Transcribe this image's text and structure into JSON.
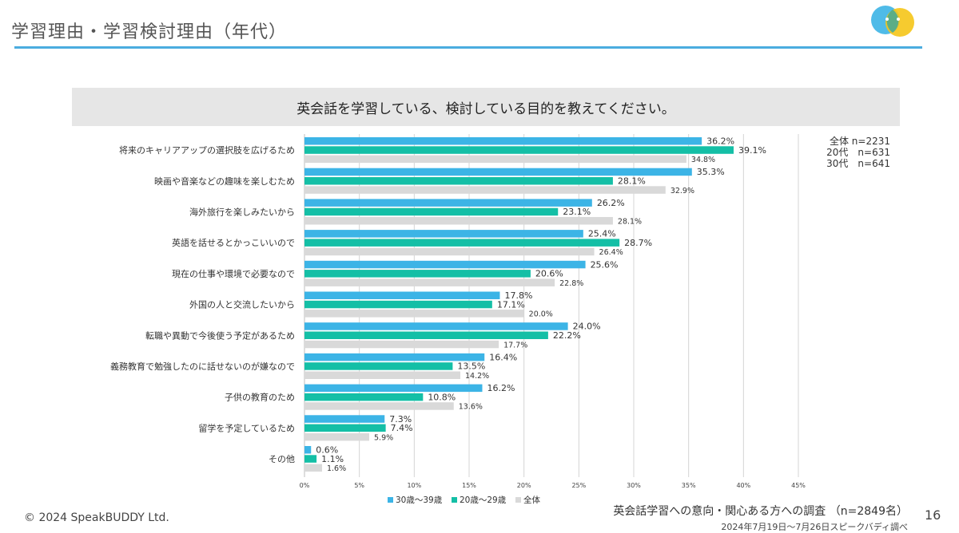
{
  "page": {
    "title": "学習理由・学習検討理由（年代）",
    "question": "英会話を学習している、検討している目的を教えてください。",
    "sample_sizes": [
      "全体 n=2231",
      "20代　n=631",
      "30代　n=641"
    ],
    "copyright": "© 2024 SpeakBUDDY Ltd.",
    "survey_title": "英会話学習への意向・関心ある方への調査 （n=2849名）",
    "survey_date": "2024年7月19日〜7月26日スピークバディ調べ",
    "page_number": "16",
    "logo_icon": "speakbuddy-logo-icon"
  },
  "chart_data": {
    "type": "bar",
    "orientation": "horizontal",
    "categories": [
      "将来のキャリアアップの選択肢を広げるため",
      "映画や音楽などの趣味を楽しむため",
      "海外旅行を楽しみたいから",
      "英語を話せるとかっこいいので",
      "現在の仕事や環境で必要なので",
      "外国の人と交流したいから",
      "転職や異動で今後使う予定があるため",
      "義務教育で勉強したのに話せないのが嫌なので",
      "子供の教育のため",
      "留学を予定しているため",
      "その他"
    ],
    "series": [
      {
        "name": "30歳〜39歳",
        "color": "#3cb4e6",
        "values": [
          36.2,
          35.3,
          26.2,
          25.4,
          25.6,
          17.8,
          24.0,
          16.4,
          16.2,
          7.3,
          0.6
        ]
      },
      {
        "name": "20歳〜29歳",
        "color": "#14bfa6",
        "values": [
          39.1,
          28.1,
          23.1,
          28.7,
          20.6,
          17.1,
          22.2,
          13.5,
          10.8,
          7.4,
          1.1
        ]
      },
      {
        "name": "全体",
        "color": "#d9d9d9",
        "values": [
          34.8,
          32.9,
          28.1,
          26.4,
          22.8,
          20.0,
          17.7,
          14.2,
          13.6,
          5.9,
          1.6
        ]
      }
    ],
    "xlim": [
      0,
      45
    ],
    "xticks": [
      "0%",
      "5%",
      "10%",
      "15%",
      "20%",
      "25%",
      "30%",
      "35%",
      "40%",
      "45%"
    ],
    "value_suffix": "%",
    "grid": "vertical",
    "legend_position": "bottom"
  }
}
